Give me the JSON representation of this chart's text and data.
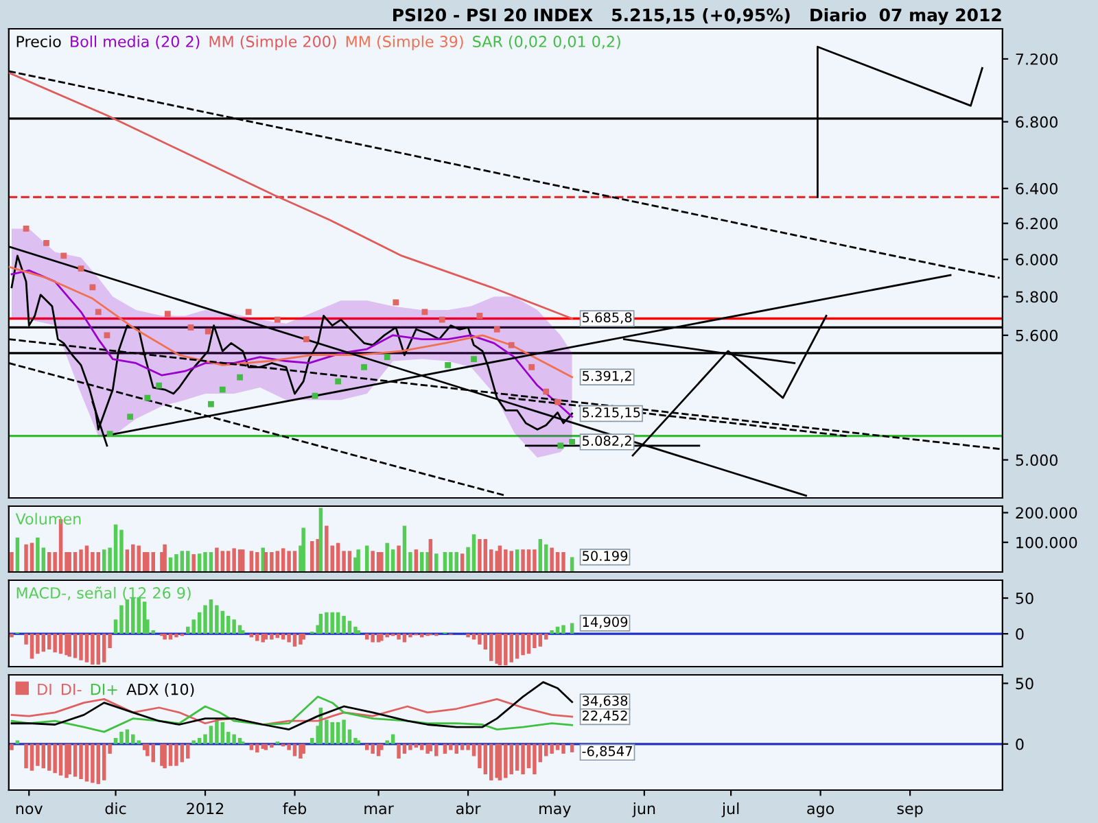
{
  "chart_data": [
    {
      "type": "line",
      "title": "PSI20 - PSI 20 INDEX   5.215,15 (+0,95%)   Diario  07 may 2012",
      "log": true,
      "legend": "top left",
      "tick_labels": "y",
      "xlim": [
        "2011-10-25",
        "2012-10-03"
      ],
      "ylim": [
        4830,
        7400
      ],
      "yticks": [
        {
          "value": 5000,
          "label": "5.000"
        },
        {
          "value": 5600,
          "label": "5.600"
        },
        {
          "value": 5800,
          "label": "5.800"
        },
        {
          "value": 6000,
          "label": "6.000"
        },
        {
          "value": 6200,
          "label": "6.200"
        },
        {
          "value": 6400,
          "label": "6.400"
        },
        {
          "value": 6800,
          "label": "6.800"
        },
        {
          "value": 7200,
          "label": "7.200"
        }
      ],
      "series": [
        {
          "name": "Precio",
          "color": "#000000",
          "x": [
            "2011-10-26",
            "2011-10-28",
            "2011-10-31",
            "2011-11-01",
            "2011-11-03",
            "2011-11-05",
            "2011-11-09",
            "2011-11-11",
            "2011-11-13",
            "2011-11-16",
            "2011-11-19",
            "2011-11-22",
            "2011-11-24",
            "2011-11-25",
            "2011-11-30",
            "2011-12-02",
            "2011-12-05",
            "2011-12-09",
            "2011-12-11",
            "2011-12-14",
            "2011-12-18",
            "2011-12-21",
            "2011-12-23",
            "2011-12-27",
            "2011-12-30",
            "2012-01-02",
            "2012-01-04",
            "2012-01-07",
            "2012-01-10",
            "2012-01-14",
            "2012-01-16",
            "2012-01-20",
            "2012-01-24",
            "2012-01-29",
            "2012-02-01",
            "2012-02-04",
            "2012-02-06",
            "2012-02-09",
            "2012-02-11",
            "2012-02-14",
            "2012-02-17",
            "2012-02-21",
            "2012-02-25",
            "2012-02-28",
            "2012-03-03",
            "2012-03-07",
            "2012-03-10",
            "2012-03-14",
            "2012-03-18",
            "2012-03-22",
            "2012-03-26",
            "2012-03-29",
            "2012-04-01",
            "2012-04-03",
            "2012-04-06",
            "2012-04-08",
            "2012-04-11",
            "2012-04-14",
            "2012-04-18",
            "2012-04-21",
            "2012-04-25",
            "2012-04-28",
            "2012-05-02",
            "2012-05-04",
            "2012-05-07"
          ],
          "values": [
            5850,
            6020,
            5880,
            5650,
            5700,
            5810,
            5750,
            5580,
            5560,
            5500,
            5450,
            5330,
            5230,
            5140,
            5330,
            5520,
            5650,
            5630,
            5500,
            5340,
            5330,
            5310,
            5340,
            5420,
            5470,
            5520,
            5650,
            5520,
            5560,
            5520,
            5440,
            5440,
            5460,
            5440,
            5310,
            5370,
            5480,
            5560,
            5700,
            5650,
            5680,
            5620,
            5560,
            5550,
            5600,
            5640,
            5500,
            5630,
            5610,
            5580,
            5650,
            5630,
            5640,
            5550,
            5520,
            5440,
            5290,
            5230,
            5230,
            5170,
            5140,
            5160,
            5220,
            5170,
            5215.15
          ]
        },
        {
          "name": "Boll media (20 2)",
          "color": "#9900cc",
          "x": [
            "2011-10-26",
            "2011-11-01",
            "2011-11-10",
            "2011-11-19",
            "2011-11-25",
            "2011-11-30",
            "2011-12-08",
            "2011-12-17",
            "2011-12-25",
            "2012-01-01",
            "2012-01-11",
            "2012-01-20",
            "2012-01-29",
            "2012-02-06",
            "2012-02-17",
            "2012-02-26",
            "2012-03-06",
            "2012-03-16",
            "2012-03-25",
            "2012-04-02",
            "2012-04-10",
            "2012-04-17",
            "2012-04-25",
            "2012-05-03",
            "2012-05-07"
          ],
          "values": [
            5920,
            5940,
            5880,
            5720,
            5580,
            5480,
            5460,
            5400,
            5420,
            5460,
            5460,
            5490,
            5470,
            5460,
            5510,
            5530,
            5600,
            5580,
            5580,
            5600,
            5560,
            5490,
            5350,
            5250,
            5200
          ],
          "upper": [
            6170,
            6170,
            6040,
            6010,
            5900,
            5800,
            5730,
            5700,
            5700,
            5730,
            5710,
            5680,
            5660,
            5710,
            5780,
            5780,
            5750,
            5730,
            5730,
            5750,
            5800,
            5800,
            5730,
            5600,
            5510
          ],
          "lower": [
            5680,
            5680,
            5650,
            5310,
            5110,
            5110,
            5190,
            5250,
            5280,
            5310,
            5310,
            5340,
            5280,
            5280,
            5280,
            5310,
            5470,
            5480,
            5470,
            5440,
            5310,
            5125,
            5010,
            5035,
            5095
          ]
        },
        {
          "name": "MM (Simple 200)",
          "color": "#e05a5a",
          "x": [
            "2011-10-25",
            "2011-11-28",
            "2012-01-25",
            "2012-02-13",
            "2012-03-09",
            "2012-04-09",
            "2012-05-07"
          ],
          "values": [
            7110,
            6840,
            6360,
            6220,
            6020,
            5850,
            5685.8
          ]
        },
        {
          "name": "MM (Simple 39)",
          "color": "#f07050",
          "x": [
            "2011-10-25",
            "2011-11-07",
            "2011-11-23",
            "2011-12-08",
            "2011-12-23",
            "2012-01-07",
            "2012-01-23",
            "2012-02-07",
            "2012-02-23",
            "2012-03-09",
            "2012-03-24",
            "2012-04-06",
            "2012-04-16",
            "2012-05-07"
          ],
          "values": [
            5960,
            5900,
            5790,
            5630,
            5500,
            5450,
            5470,
            5500,
            5500,
            5520,
            5560,
            5600,
            5550,
            5391.2
          ]
        },
        {
          "name": "SAR (0,02 0,01 0,2)",
          "type": "scatter",
          "marker": "square",
          "color": "#44bb44",
          "x": [
            "2011-10-31",
            "2011-11-07",
            "2011-11-13",
            "2011-11-19",
            "2011-11-23",
            "2011-11-25",
            "2011-11-28",
            "2011-11-29",
            "2011-12-06",
            "2011-12-12",
            "2011-12-16",
            "2011-12-19",
            "2011-12-27",
            "2012-01-02",
            "2012-01-03",
            "2012-01-07",
            "2012-01-13",
            "2012-01-16",
            "2012-01-26",
            "2012-02-05",
            "2012-02-08",
            "2012-02-16",
            "2012-02-25",
            "2012-03-04",
            "2012-03-07",
            "2012-03-17",
            "2012-03-23",
            "2012-03-25",
            "2012-04-03",
            "2012-04-05",
            "2012-04-11",
            "2012-04-16",
            "2012-04-23",
            "2012-04-28",
            "2012-05-02",
            "2012-05-03",
            "2012-05-07"
          ],
          "values": [
            6170,
            6090,
            6020,
            5950,
            5850,
            5720,
            5600,
            5120,
            5200,
            5290,
            5350,
            5710,
            5640,
            5620,
            5260,
            5330,
            5390,
            5720,
            5680,
            5580,
            5300,
            5370,
            5440,
            5490,
            5770,
            5720,
            5680,
            5450,
            5480,
            5700,
            5630,
            5550,
            5440,
            5320,
            5270,
            5065,
            5082.2
          ],
          "colors": [
            "#e06666",
            "#e06666",
            "#e06666",
            "#e06666",
            "#e06666",
            "#e06666",
            "#e06666",
            "#44bb44",
            "#44bb44",
            "#44bb44",
            "#44bb44",
            "#e06666",
            "#e06666",
            "#e06666",
            "#44bb44",
            "#44bb44",
            "#44bb44",
            "#e06666",
            "#e06666",
            "#e06666",
            "#44bb44",
            "#44bb44",
            "#44bb44",
            "#44bb44",
            "#e06666",
            "#e06666",
            "#e06666",
            "#44bb44",
            "#44bb44",
            "#e06666",
            "#e06666",
            "#e06666",
            "#e06666",
            "#e06666",
            "#e06666",
            "#44bb44",
            "#44bb44"
          ]
        },
        {
          "color": "#000000",
          "x": [
            "2011-10-25",
            "2012-07-27"
          ],
          "values": [
            6070,
            4840
          ]
        },
        {
          "color": "#000000",
          "x": [
            "2011-11-27",
            "2012-09-15"
          ],
          "values": [
            5110,
            5915
          ]
        },
        {
          "color": "#000000",
          "x": [
            "2011-11-23",
            "2011-11-28"
          ],
          "values": [
            5270,
            5065
          ]
        },
        {
          "color": "#000000",
          "line_style": "dashed",
          "x": [
            "2011-10-25",
            "2012-10-02"
          ],
          "values": [
            5580,
            5050
          ]
        },
        {
          "color": "#000000",
          "line_style": "dashed",
          "x": [
            "2011-10-25",
            "2012-04-14"
          ],
          "values": [
            5460,
            4840
          ]
        },
        {
          "color": "#000000",
          "line_style": "dashed",
          "x": [
            "2011-10-25",
            "2012-10-02"
          ],
          "values": [
            7120,
            5900
          ]
        },
        {
          "color": "#000000",
          "line_style": "dashed",
          "x": [
            "2012-04-15",
            "2012-08-10"
          ],
          "values": [
            5290,
            5110
          ]
        },
        {
          "color": "#000000",
          "x": [
            "2012-05-28",
            "2012-06-30",
            "2012-07-19",
            "2012-08-03"
          ],
          "values": [
            5020,
            5520,
            5290,
            5700
          ]
        },
        {
          "color": "#000000",
          "x": [
            "2012-05-25",
            "2012-07-23"
          ],
          "values": [
            5580,
            5460
          ]
        },
        {
          "color": "#000000",
          "x": [
            "2012-07-31",
            "2012-07-31",
            "2012-09-22",
            "2012-09-26"
          ],
          "values": [
            6350,
            7280,
            6900,
            7140
          ]
        },
        {
          "color": "#000000",
          "x": [
            "2012-04-21",
            "2012-06-20"
          ],
          "values": [
            5065,
            5065
          ]
        }
      ],
      "ref_lines": [
        {
          "axis": "y",
          "value": 6820,
          "color": "#000000"
        },
        {
          "axis": "y",
          "value": 6350,
          "color": "#e03030",
          "line_style": "dashed"
        },
        {
          "axis": "y",
          "value": 5685.8,
          "color": "#ff0000"
        },
        {
          "axis": "y",
          "value": 5640,
          "color": "#000000"
        },
        {
          "axis": "y",
          "value": 5510,
          "color": "#000000"
        },
        {
          "axis": "y",
          "value": 5110,
          "color": "#33bb33"
        }
      ],
      "annotations": [
        {
          "text": "5.685,8",
          "x": "2012-05-07",
          "y": 5685.8
        },
        {
          "text": "5.391,2",
          "x": "2012-05-07",
          "y": 5391.2
        },
        {
          "text": "5.215,15",
          "x": "2012-05-07",
          "y": 5215.15
        },
        {
          "text": "5.082,2",
          "x": "2012-05-07",
          "y": 5082.2
        }
      ]
    },
    {
      "type": "bar",
      "legend": "top left",
      "tick_labels": "y",
      "xlim": [
        "2011-10-25",
        "2012-10-03"
      ],
      "ylim": [
        0,
        222000
      ],
      "yticks": [
        {
          "value": 100000,
          "label": "100.000"
        },
        {
          "value": 200000,
          "label": "200.000"
        }
      ],
      "x": [
        "2011-10-26",
        "2011-10-28",
        "2011-10-31",
        "2011-11-02",
        "2011-11-04",
        "2011-11-06",
        "2011-11-08",
        "2011-11-10",
        "2011-11-12",
        "2011-11-14",
        "2011-11-15",
        "2011-11-17",
        "2011-11-19",
        "2011-11-21",
        "2011-11-23",
        "2011-11-25",
        "2011-11-27",
        "2011-11-29",
        "2011-12-01",
        "2011-12-03",
        "2011-12-05",
        "2011-12-07",
        "2011-12-09",
        "2011-12-11",
        "2011-12-12",
        "2011-12-14",
        "2011-12-17",
        "2011-12-18",
        "2011-12-20",
        "2011-12-22",
        "2011-12-24",
        "2011-12-26",
        "2011-12-28",
        "2011-12-30",
        "2012-01-01",
        "2012-01-03",
        "2012-01-05",
        "2012-01-07",
        "2012-01-09",
        "2012-01-11",
        "2012-01-13",
        "2012-01-14",
        "2012-01-17",
        "2012-01-19",
        "2012-01-21",
        "2012-01-22",
        "2012-01-24",
        "2012-01-26",
        "2012-01-28",
        "2012-01-30",
        "2012-02-01",
        "2012-02-03",
        "2012-02-04",
        "2012-02-07",
        "2012-02-09",
        "2012-02-10",
        "2012-02-12",
        "2012-02-14",
        "2012-02-16",
        "2012-02-18",
        "2012-02-20",
        "2012-02-22",
        "2012-02-23",
        "2012-02-26",
        "2012-02-28",
        "2012-03-01",
        "2012-03-02",
        "2012-03-04",
        "2012-03-06",
        "2012-03-08",
        "2012-03-10",
        "2012-03-12",
        "2012-03-14",
        "2012-03-16",
        "2012-03-18",
        "2012-03-19",
        "2012-03-21",
        "2012-03-24",
        "2012-03-26",
        "2012-03-28",
        "2012-03-30",
        "2012-04-01",
        "2012-04-03",
        "2012-04-05",
        "2012-04-07",
        "2012-04-09",
        "2012-04-11",
        "2012-04-12",
        "2012-04-14",
        "2012-04-16",
        "2012-04-18",
        "2012-04-20",
        "2012-04-22",
        "2012-04-24",
        "2012-04-26",
        "2012-04-28",
        "2012-04-30",
        "2012-05-02",
        "2012-05-04",
        "2012-05-07"
      ],
      "series": [
        {
          "name": "Volumen",
          "color": "#55cc55",
          "values": [
            67000,
            116000,
            93000,
            98000,
            116000,
            82000,
            67000,
            67000,
            178000,
            67000,
            67000,
            67000,
            76000,
            89000,
            67000,
            67000,
            76000,
            82000,
            160000,
            142000,
            76000,
            93000,
            89000,
            67000,
            67000,
            67000,
            67000,
            93000,
            49000,
            60000,
            71000,
            71000,
            60000,
            62000,
            67000,
            67000,
            82000,
            71000,
            71000,
            80000,
            76000,
            76000,
            71000,
            67000,
            82000,
            67000,
            67000,
            71000,
            80000,
            71000,
            71000,
            89000,
            149000,
            104000,
            111000,
            216000,
            156000,
            89000,
            98000,
            71000,
            71000,
            49000,
            76000,
            89000,
            71000,
            67000,
            67000,
            98000,
            76000,
            89000,
            156000,
            67000,
            76000,
            67000,
            67000,
            111000,
            62000,
            67000,
            67000,
            67000,
            62000,
            84000,
            127000,
            111000,
            111000,
            76000,
            71000,
            89000,
            76000,
            71000,
            76000,
            76000,
            76000,
            76000,
            111000,
            93000,
            82000,
            67000,
            67000,
            50199
          ],
          "colors": [
            "#e06666",
            "#55cc55",
            "#e06666",
            "#e06666",
            "#55cc55",
            "#55cc55",
            "#e06666",
            "#e06666",
            "#e06666",
            "#e06666",
            "#e06666",
            "#e06666",
            "#e06666",
            "#e06666",
            "#e06666",
            "#e06666",
            "#55cc55",
            "#55cc55",
            "#55cc55",
            "#55cc55",
            "#e06666",
            "#e06666",
            "#e06666",
            "#e06666",
            "#e06666",
            "#e06666",
            "#e06666",
            "#e06666",
            "#55cc55",
            "#55cc55",
            "#55cc55",
            "#55cc55",
            "#e06666",
            "#55cc55",
            "#55cc55",
            "#55cc55",
            "#e06666",
            "#e06666",
            "#e06666",
            "#e06666",
            "#e06666",
            "#e06666",
            "#e06666",
            "#e06666",
            "#55cc55",
            "#e06666",
            "#e06666",
            "#e06666",
            "#e06666",
            "#e06666",
            "#e06666",
            "#55cc55",
            "#55cc55",
            "#e06666",
            "#e06666",
            "#55cc55",
            "#e06666",
            "#e06666",
            "#e06666",
            "#e06666",
            "#e06666",
            "#55cc55",
            "#55cc55",
            "#55cc55",
            "#e06666",
            "#e06666",
            "#e06666",
            "#55cc55",
            "#55cc55",
            "#e06666",
            "#55cc55",
            "#55cc55",
            "#e06666",
            "#55cc55",
            "#55cc55",
            "#e06666",
            "#55cc55",
            "#55cc55",
            "#55cc55",
            "#55cc55",
            "#e06666",
            "#55cc55",
            "#55cc55",
            "#e06666",
            "#e06666",
            "#e06666",
            "#e06666",
            "#e06666",
            "#e06666",
            "#e06666",
            "#55cc55",
            "#e06666",
            "#e06666",
            "#e06666",
            "#55cc55",
            "#55cc55",
            "#e06666",
            "#e06666",
            "#e06666",
            "#55cc55"
          ]
        }
      ],
      "annotations": [
        {
          "text": "50.199",
          "x": "2012-05-07",
          "y": 50199
        }
      ]
    },
    {
      "type": "bar",
      "legend": "top left",
      "tick_labels": "y",
      "xlim": [
        "2011-10-25",
        "2012-10-03"
      ],
      "ylim": [
        -46,
        75
      ],
      "yticks": [
        50,
        0
      ],
      "x": [
        "2011-10-26",
        "2011-10-28",
        "2011-10-31",
        "2011-11-02",
        "2011-11-04",
        "2011-11-06",
        "2011-11-08",
        "2011-11-10",
        "2011-11-12",
        "2011-11-14",
        "2011-11-15",
        "2011-11-17",
        "2011-11-19",
        "2011-11-21",
        "2011-11-23",
        "2011-11-25",
        "2011-11-27",
        "2011-11-29",
        "2011-12-01",
        "2011-12-03",
        "2011-12-05",
        "2011-12-07",
        "2011-12-09",
        "2011-12-11",
        "2011-12-12",
        "2011-12-14",
        "2011-12-17",
        "2011-12-18",
        "2011-12-20",
        "2011-12-22",
        "2011-12-24",
        "2011-12-26",
        "2011-12-28",
        "2011-12-30",
        "2012-01-01",
        "2012-01-03",
        "2012-01-05",
        "2012-01-07",
        "2012-01-09",
        "2012-01-11",
        "2012-01-13",
        "2012-01-14",
        "2012-01-17",
        "2012-01-19",
        "2012-01-21",
        "2012-01-22",
        "2012-01-24",
        "2012-01-26",
        "2012-01-28",
        "2012-01-30",
        "2012-02-01",
        "2012-02-03",
        "2012-02-04",
        "2012-02-07",
        "2012-02-09",
        "2012-02-10",
        "2012-02-12",
        "2012-02-14",
        "2012-02-16",
        "2012-02-18",
        "2012-02-20",
        "2012-02-22",
        "2012-02-23",
        "2012-02-26",
        "2012-02-28",
        "2012-03-01",
        "2012-03-02",
        "2012-03-04",
        "2012-03-06",
        "2012-03-08",
        "2012-03-10",
        "2012-03-12",
        "2012-03-14",
        "2012-03-16",
        "2012-03-18",
        "2012-03-19",
        "2012-03-21",
        "2012-03-24",
        "2012-03-26",
        "2012-03-28",
        "2012-03-30",
        "2012-04-01",
        "2012-04-03",
        "2012-04-05",
        "2012-04-07",
        "2012-04-09",
        "2012-04-11",
        "2012-04-12",
        "2012-04-14",
        "2012-04-16",
        "2012-04-18",
        "2012-04-20",
        "2012-04-22",
        "2012-04-24",
        "2012-04-26",
        "2012-04-28",
        "2012-04-30",
        "2012-05-02",
        "2012-05-04",
        "2012-05-07"
      ],
      "series": [
        {
          "name": "MACD-, señal (12 26 9)",
          "color": "#55cc55",
          "values": [
            -5,
            2,
            -15,
            -35,
            -28,
            -25,
            -22,
            -26,
            -28,
            -30,
            -32,
            -34,
            -37,
            -40,
            -43,
            -43,
            -40,
            -20,
            20,
            40,
            48,
            51,
            51,
            45,
            20,
            5,
            -3,
            -8,
            -8,
            -5,
            -3,
            10,
            20,
            30,
            40,
            48,
            40,
            32,
            25,
            20,
            12,
            5,
            -5,
            -10,
            -12,
            -8,
            -8,
            -6,
            -8,
            -12,
            -18,
            -15,
            -8,
            3,
            12,
            28,
            30,
            30,
            30,
            25,
            18,
            10,
            5,
            -8,
            -12,
            -12,
            -10,
            -5,
            -3,
            -8,
            -12,
            -5,
            -2,
            -5,
            -3,
            -2,
            -3,
            2,
            -1,
            null,
            null,
            -5,
            -8,
            -15,
            -22,
            -38,
            -42,
            -44,
            -44,
            -40,
            -35,
            -30,
            -28,
            -20,
            -18,
            -8,
            5,
            10,
            12,
            14.909
          ],
          "colors": [
            "#e06666",
            "#55cc55",
            "#e06666",
            "#e06666",
            "#e06666",
            "#e06666",
            "#e06666",
            "#e06666",
            "#e06666",
            "#e06666",
            "#e06666",
            "#e06666",
            "#e06666",
            "#e06666",
            "#e06666",
            "#e06666",
            "#e06666",
            "#e06666",
            "#55cc55",
            "#55cc55",
            "#55cc55",
            "#55cc55",
            "#55cc55",
            "#55cc55",
            "#55cc55",
            "#55cc55",
            "#e06666",
            "#e06666",
            "#e06666",
            "#e06666",
            "#e06666",
            "#55cc55",
            "#55cc55",
            "#55cc55",
            "#55cc55",
            "#55cc55",
            "#55cc55",
            "#55cc55",
            "#55cc55",
            "#55cc55",
            "#55cc55",
            "#55cc55",
            "#e06666",
            "#e06666",
            "#e06666",
            "#e06666",
            "#e06666",
            "#e06666",
            "#e06666",
            "#e06666",
            "#e06666",
            "#e06666",
            "#e06666",
            "#55cc55",
            "#55cc55",
            "#55cc55",
            "#55cc55",
            "#55cc55",
            "#55cc55",
            "#55cc55",
            "#55cc55",
            "#55cc55",
            "#55cc55",
            "#e06666",
            "#e06666",
            "#e06666",
            "#e06666",
            "#e06666",
            "#e06666",
            "#e06666",
            "#e06666",
            "#e06666",
            "#e06666",
            "#e06666",
            "#e06666",
            "#e06666",
            "#e06666",
            "#55cc55",
            "#e06666",
            "#55cc55",
            "#55cc55",
            "#e06666",
            "#e06666",
            "#e06666",
            "#e06666",
            "#e06666",
            "#e06666",
            "#e06666",
            "#e06666",
            "#e06666",
            "#e06666",
            "#e06666",
            "#e06666",
            "#e06666",
            "#e06666",
            "#e06666",
            "#55cc55",
            "#55cc55",
            "#55cc55",
            "#55cc55"
          ]
        }
      ],
      "ref_lines": [
        {
          "axis": "y",
          "value": 0,
          "color": "#2030c0"
        }
      ],
      "annotations": [
        {
          "text": "14,909",
          "x": "2012-05-07",
          "y": 14.909
        }
      ]
    },
    {
      "type": "line",
      "legend": "top left",
      "xlim": [
        "2011-10-25",
        "2012-10-03"
      ],
      "ylim": [
        -38,
        57
      ],
      "yticks": [
        50,
        0
      ],
      "xticks": [
        {
          "value": "2011-11-01",
          "label": "nov"
        },
        {
          "value": "2011-12-01",
          "label": "dic"
        },
        {
          "value": "2012-01-01",
          "label": "2012"
        },
        {
          "value": "2012-02-01",
          "label": "feb"
        },
        {
          "value": "2012-03-01",
          "label": "mar"
        },
        {
          "value": "2012-04-01",
          "label": "abr"
        },
        {
          "value": "2012-05-01",
          "label": "may"
        },
        {
          "value": "2012-06-01",
          "label": "jun"
        },
        {
          "value": "2012-07-01",
          "label": "jul"
        },
        {
          "value": "2012-08-01",
          "label": "ago"
        },
        {
          "value": "2012-09-01",
          "label": "sep"
        }
      ],
      "series": [
        {
          "name": "DI",
          "type": "bar",
          "color": "#e06666",
          "x": [
            "2011-10-26",
            "2011-10-28",
            "2011-10-31",
            "2011-11-02",
            "2011-11-04",
            "2011-11-06",
            "2011-11-08",
            "2011-11-10",
            "2011-11-12",
            "2011-11-14",
            "2011-11-15",
            "2011-11-17",
            "2011-11-19",
            "2011-11-21",
            "2011-11-23",
            "2011-11-25",
            "2011-11-27",
            "2011-11-29",
            "2011-12-01",
            "2011-12-03",
            "2011-12-05",
            "2011-12-07",
            "2011-12-09",
            "2011-12-11",
            "2011-12-12",
            "2011-12-14",
            "2011-12-17",
            "2011-12-18",
            "2011-12-20",
            "2011-12-22",
            "2011-12-24",
            "2011-12-26",
            "2011-12-28",
            "2011-12-30",
            "2012-01-01",
            "2012-01-03",
            "2012-01-05",
            "2012-01-07",
            "2012-01-09",
            "2012-01-11",
            "2012-01-13",
            "2012-01-14",
            "2012-01-17",
            "2012-01-19",
            "2012-01-21",
            "2012-01-22",
            "2012-01-24",
            "2012-01-26",
            "2012-01-28",
            "2012-01-30",
            "2012-02-01",
            "2012-02-03",
            "2012-02-04",
            "2012-02-07",
            "2012-02-09",
            "2012-02-10",
            "2012-02-12",
            "2012-02-14",
            "2012-02-16",
            "2012-02-18",
            "2012-02-20",
            "2012-02-22",
            "2012-02-23",
            "2012-02-26",
            "2012-02-28",
            "2012-03-01",
            "2012-03-02",
            "2012-03-04",
            "2012-03-06",
            "2012-03-08",
            "2012-03-10",
            "2012-03-12",
            "2012-03-14",
            "2012-03-16",
            "2012-03-18",
            "2012-03-19",
            "2012-03-21",
            "2012-03-24",
            "2012-03-26",
            "2012-03-28",
            "2012-03-30",
            "2012-04-01",
            "2012-04-03",
            "2012-04-05",
            "2012-04-07",
            "2012-04-09",
            "2012-04-11",
            "2012-04-12",
            "2012-04-14",
            "2012-04-16",
            "2012-04-18",
            "2012-04-20",
            "2012-04-22",
            "2012-04-24",
            "2012-04-26",
            "2012-04-28",
            "2012-04-30",
            "2012-05-02",
            "2012-05-04",
            "2012-05-07"
          ],
          "values": [
            -5,
            3,
            -20,
            -22,
            -18,
            -20,
            -22,
            -24,
            -26,
            -28,
            -25,
            -27,
            -29,
            -31,
            -32,
            -33,
            -30,
            -8,
            5,
            10,
            12,
            8,
            3,
            -5,
            -10,
            -15,
            -18,
            -20,
            -18,
            -18,
            -15,
            -12,
            3,
            5,
            8,
            15,
            20,
            18,
            10,
            8,
            5,
            2,
            -5,
            -7,
            -4,
            -5,
            -3,
            2,
            -2,
            -5,
            -10,
            -12,
            -8,
            5,
            15,
            30,
            20,
            18,
            18,
            20,
            12,
            5,
            3,
            -5,
            -8,
            -10,
            -5,
            3,
            8,
            -12,
            -8,
            -5,
            -3,
            -5,
            -8,
            -6,
            -10,
            -8,
            -5,
            -8,
            -5,
            -5,
            -10,
            -20,
            -25,
            -30,
            -28,
            -30,
            -28,
            -25,
            -22,
            -25,
            -20,
            -25,
            -15,
            -10,
            -8,
            -5,
            -8,
            -6.8547
          ],
          "colors": [
            "#e06666",
            "#55cc55",
            "#e06666",
            "#e06666",
            "#e06666",
            "#e06666",
            "#e06666",
            "#e06666",
            "#e06666",
            "#e06666",
            "#e06666",
            "#e06666",
            "#e06666",
            "#e06666",
            "#e06666",
            "#e06666",
            "#e06666",
            "#e06666",
            "#55cc55",
            "#55cc55",
            "#55cc55",
            "#55cc55",
            "#55cc55",
            "#e06666",
            "#e06666",
            "#e06666",
            "#e06666",
            "#e06666",
            "#e06666",
            "#e06666",
            "#e06666",
            "#e06666",
            "#55cc55",
            "#55cc55",
            "#55cc55",
            "#55cc55",
            "#55cc55",
            "#55cc55",
            "#55cc55",
            "#55cc55",
            "#55cc55",
            "#55cc55",
            "#e06666",
            "#e06666",
            "#e06666",
            "#e06666",
            "#e06666",
            "#55cc55",
            "#e06666",
            "#e06666",
            "#e06666",
            "#e06666",
            "#e06666",
            "#55cc55",
            "#55cc55",
            "#55cc55",
            "#55cc55",
            "#55cc55",
            "#55cc55",
            "#55cc55",
            "#55cc55",
            "#55cc55",
            "#55cc55",
            "#e06666",
            "#e06666",
            "#e06666",
            "#e06666",
            "#55cc55",
            "#55cc55",
            "#e06666",
            "#e06666",
            "#e06666",
            "#e06666",
            "#e06666",
            "#e06666",
            "#e06666",
            "#e06666",
            "#e06666",
            "#e06666",
            "#e06666",
            "#e06666",
            "#e06666",
            "#e06666",
            "#e06666",
            "#e06666",
            "#e06666",
            "#e06666",
            "#e06666",
            "#e06666",
            "#e06666",
            "#e06666",
            "#e06666",
            "#e06666",
            "#e06666",
            "#e06666",
            "#e06666",
            "#e06666",
            "#e06666",
            "#e06666",
            "#e06666"
          ]
        },
        {
          "name": "DI-",
          "color": "#e06060",
          "x": [
            "2011-10-26",
            "2011-11-01",
            "2011-11-10",
            "2011-11-20",
            "2011-11-27",
            "2011-12-07",
            "2011-12-16",
            "2011-12-23",
            "2012-01-01",
            "2012-01-06",
            "2012-01-11",
            "2012-01-21",
            "2012-01-30",
            "2012-02-09",
            "2012-02-14",
            "2012-02-18",
            "2012-02-28",
            "2012-03-11",
            "2012-03-18",
            "2012-03-28",
            "2012-04-06",
            "2012-04-11",
            "2012-04-20",
            "2012-04-30",
            "2012-05-07"
          ],
          "values": [
            24,
            23,
            26,
            34,
            37,
            26,
            30,
            26,
            17,
            20,
            21,
            16,
            19,
            19,
            23,
            26,
            23,
            31,
            26,
            29,
            34,
            37,
            30,
            24,
            22.452
          ]
        },
        {
          "name": "DI+",
          "color": "#40c040",
          "x": [
            "2011-10-26",
            "2011-11-01",
            "2011-11-10",
            "2011-11-20",
            "2011-11-27",
            "2011-12-07",
            "2011-12-16",
            "2011-12-23",
            "2012-01-01",
            "2012-01-06",
            "2012-01-11",
            "2012-01-21",
            "2012-01-30",
            "2012-02-09",
            "2012-02-14",
            "2012-02-18",
            "2012-02-28",
            "2012-03-11",
            "2012-03-18",
            "2012-03-28",
            "2012-04-06",
            "2012-04-11",
            "2012-04-20",
            "2012-04-30",
            "2012-05-07"
          ],
          "values": [
            19,
            17,
            19,
            14,
            10,
            21,
            19,
            17,
            31,
            26,
            19,
            16,
            17,
            39,
            34,
            26,
            21,
            19,
            17,
            17,
            16,
            12,
            14,
            17,
            15.6
          ]
        },
        {
          "name": "ADX (10)",
          "color": "#000000",
          "x": [
            "2011-10-26",
            "2011-11-01",
            "2011-11-10",
            "2011-11-20",
            "2011-11-27",
            "2011-12-07",
            "2011-12-16",
            "2011-12-23",
            "2012-01-01",
            "2012-01-11",
            "2012-01-21",
            "2012-01-30",
            "2012-02-09",
            "2012-02-18",
            "2012-02-28",
            "2012-03-11",
            "2012-03-18",
            "2012-03-28",
            "2012-04-06",
            "2012-04-11",
            "2012-04-20",
            "2012-04-27",
            "2012-05-02",
            "2012-05-07"
          ],
          "values": [
            17,
            17,
            16,
            24,
            34,
            26,
            19,
            16,
            21,
            21,
            16,
            12,
            23,
            31,
            26,
            19,
            16,
            14,
            14,
            21,
            39,
            51,
            46,
            34.638
          ]
        }
      ],
      "ref_lines": [
        {
          "axis": "y",
          "value": 0,
          "color": "#2030c0"
        }
      ],
      "annotations": [
        {
          "text": "34,638",
          "x": "2012-05-07",
          "y": 34.638
        },
        {
          "text": "22,452",
          "x": "2012-05-07",
          "y": 22.452
        },
        {
          "text": "-6,8547",
          "x": "2012-05-07",
          "y": -6.8547
        }
      ]
    }
  ]
}
